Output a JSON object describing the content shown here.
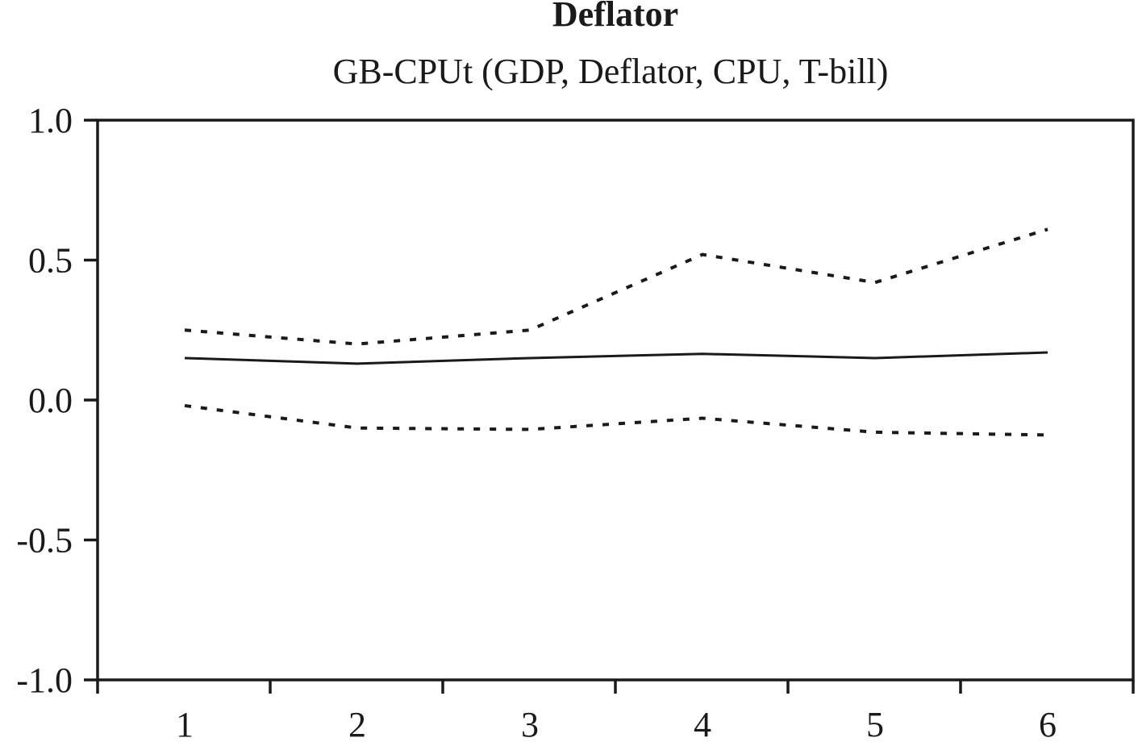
{
  "chart_data": {
    "type": "line",
    "title": "Deflator",
    "subtitle": "GB-CPUt (GDP, Deflator, CPU, T-bill)",
    "xlabel": "",
    "ylabel": "",
    "x": [
      1,
      2,
      3,
      4,
      5,
      6
    ],
    "x_tick_labels": [
      "1",
      "2",
      "3",
      "4",
      "5",
      "6"
    ],
    "ylim": [
      -1.0,
      1.0
    ],
    "y_ticks": [
      1.0,
      0.5,
      0.0,
      -0.5,
      -1.0
    ],
    "y_tick_labels": [
      "1.0",
      "0.5",
      "0.0",
      "-0.5",
      "-1.0"
    ],
    "grid": false,
    "legend": "none",
    "series": [
      {
        "style": "solid",
        "values": [
          0.15,
          0.13,
          0.15,
          0.165,
          0.15,
          0.17
        ]
      },
      {
        "style": "dotted",
        "values": [
          0.25,
          0.2,
          0.25,
          0.52,
          0.42,
          0.61
        ]
      },
      {
        "style": "dotted",
        "values": [
          -0.02,
          -0.1,
          -0.105,
          -0.065,
          -0.115,
          -0.125
        ]
      }
    ]
  }
}
